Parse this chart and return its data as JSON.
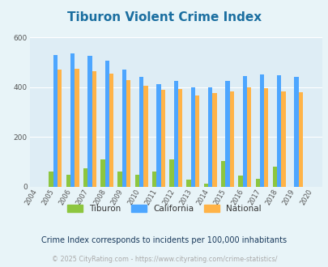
{
  "title": "Tiburon Violent Crime Index",
  "years": [
    2004,
    2005,
    2006,
    2007,
    2008,
    2009,
    2010,
    2011,
    2012,
    2013,
    2014,
    2015,
    2016,
    2017,
    2018,
    2019,
    2020
  ],
  "tiburon": [
    0,
    62,
    50,
    75,
    110,
    62,
    50,
    62,
    110,
    28,
    14,
    105,
    44,
    33,
    80,
    0,
    0
  ],
  "california": [
    0,
    530,
    535,
    525,
    505,
    470,
    440,
    412,
    425,
    400,
    400,
    425,
    445,
    450,
    448,
    440,
    0
  ],
  "national": [
    0,
    470,
    473,
    465,
    455,
    430,
    405,
    390,
    392,
    368,
    375,
    383,
    400,
    395,
    383,
    379,
    0
  ],
  "tiburon_color": "#8dc63f",
  "california_color": "#4da6ff",
  "national_color": "#ffb347",
  "background_color": "#e8f4f8",
  "plot_bg_color": "#deedf5",
  "grid_color": "#ffffff",
  "title_color": "#1a6ea0",
  "legend_text_color": "#333333",
  "subtitle_color": "#1a3a5c",
  "footer_color": "#aaaaaa",
  "footer_link_color": "#4da6ff",
  "ylim": [
    0,
    600
  ],
  "yticks": [
    0,
    200,
    400,
    600
  ],
  "subtitle": "Crime Index corresponds to incidents per 100,000 inhabitants",
  "footer": "© 2025 CityRating.com - https://www.cityrating.com/crime-statistics/",
  "bar_width": 0.25
}
